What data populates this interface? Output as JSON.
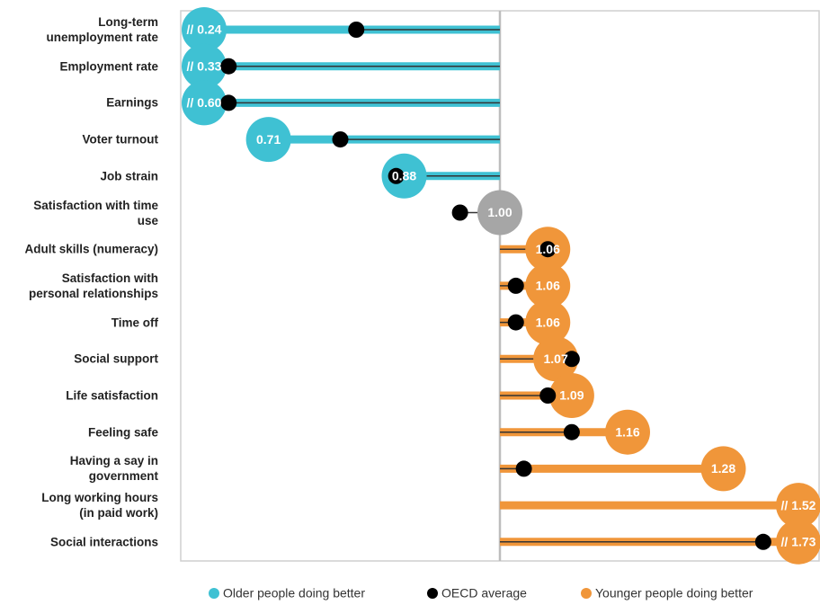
{
  "chart_data": {
    "type": "lollipop",
    "categories": [
      "Long-term\nunemployment rate",
      "Employment rate",
      "Earnings",
      "Voter turnout",
      "Job strain",
      "Satisfaction with time\nuse",
      "Adult skills (numeracy)",
      "Satisfaction with\npersonal relationships",
      "Time off",
      "Social support",
      "Life satisfaction",
      "Feeling safe",
      "Having a say in\ngovernment",
      "Long working hours\n(in paid work)",
      "Social interactions"
    ],
    "values": [
      0.24,
      0.33,
      0.6,
      0.71,
      0.88,
      1.0,
      1.06,
      1.06,
      1.06,
      1.07,
      1.09,
      1.16,
      1.28,
      1.52,
      1.73
    ],
    "value_labels": [
      "// 0.24",
      "// 0.33",
      "// 0.60",
      "0.71",
      "0.88",
      "1.00",
      "1.06",
      "1.06",
      "1.06",
      "1.07",
      "1.09",
      "1.16",
      "1.28",
      "// 1.52",
      "// 1.73"
    ],
    "averages": [
      0.82,
      0.66,
      0.66,
      0.8,
      0.87,
      0.95,
      1.06,
      1.02,
      1.02,
      1.09,
      1.06,
      1.09,
      1.03,
      null,
      1.33
    ],
    "baseline": 1,
    "xlim": [
      0.6,
      1.4
    ],
    "below_color": "#3fc1d3",
    "neutral_color": "#a6a6a6",
    "above_color": "#f0963a",
    "average_color": "#000000",
    "legend": [
      {
        "name": "Older people doing better",
        "color": "#3fc1d3"
      },
      {
        "name": "OECD average",
        "color": "#000000"
      },
      {
        "name": "Younger people doing better",
        "color": "#f0963a"
      }
    ]
  }
}
